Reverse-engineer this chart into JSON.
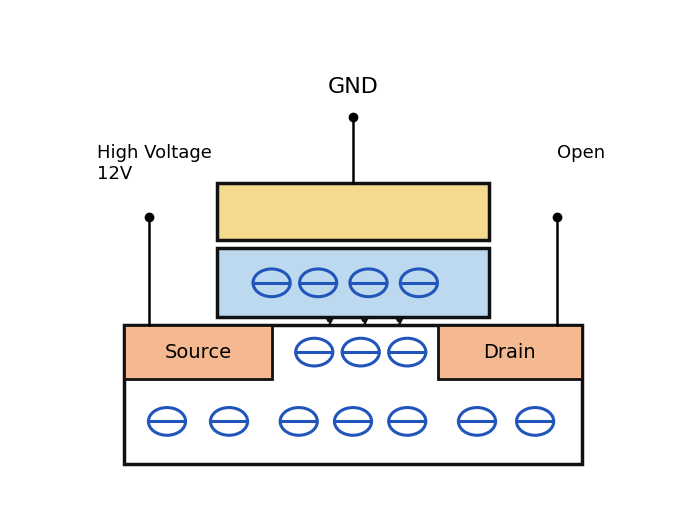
{
  "fig_width": 6.85,
  "fig_height": 5.28,
  "bg_color": "#ffffff",
  "gnd_text": "GND",
  "label_hv": "High Voltage\n12V",
  "label_open": "Open",
  "control_gate_color": "#F5D98E",
  "control_gate_border": "#111111",
  "floating_gate_color": "#BDD9EF",
  "floating_gate_border": "#111111",
  "source_color": "#F4B990",
  "source_border": "#111111",
  "drain_color": "#F4B990",
  "drain_border": "#111111",
  "substrate_color": "#ffffff",
  "substrate_border": "#111111",
  "electron_color": "#2255BB",
  "arrow_color": "#111111"
}
